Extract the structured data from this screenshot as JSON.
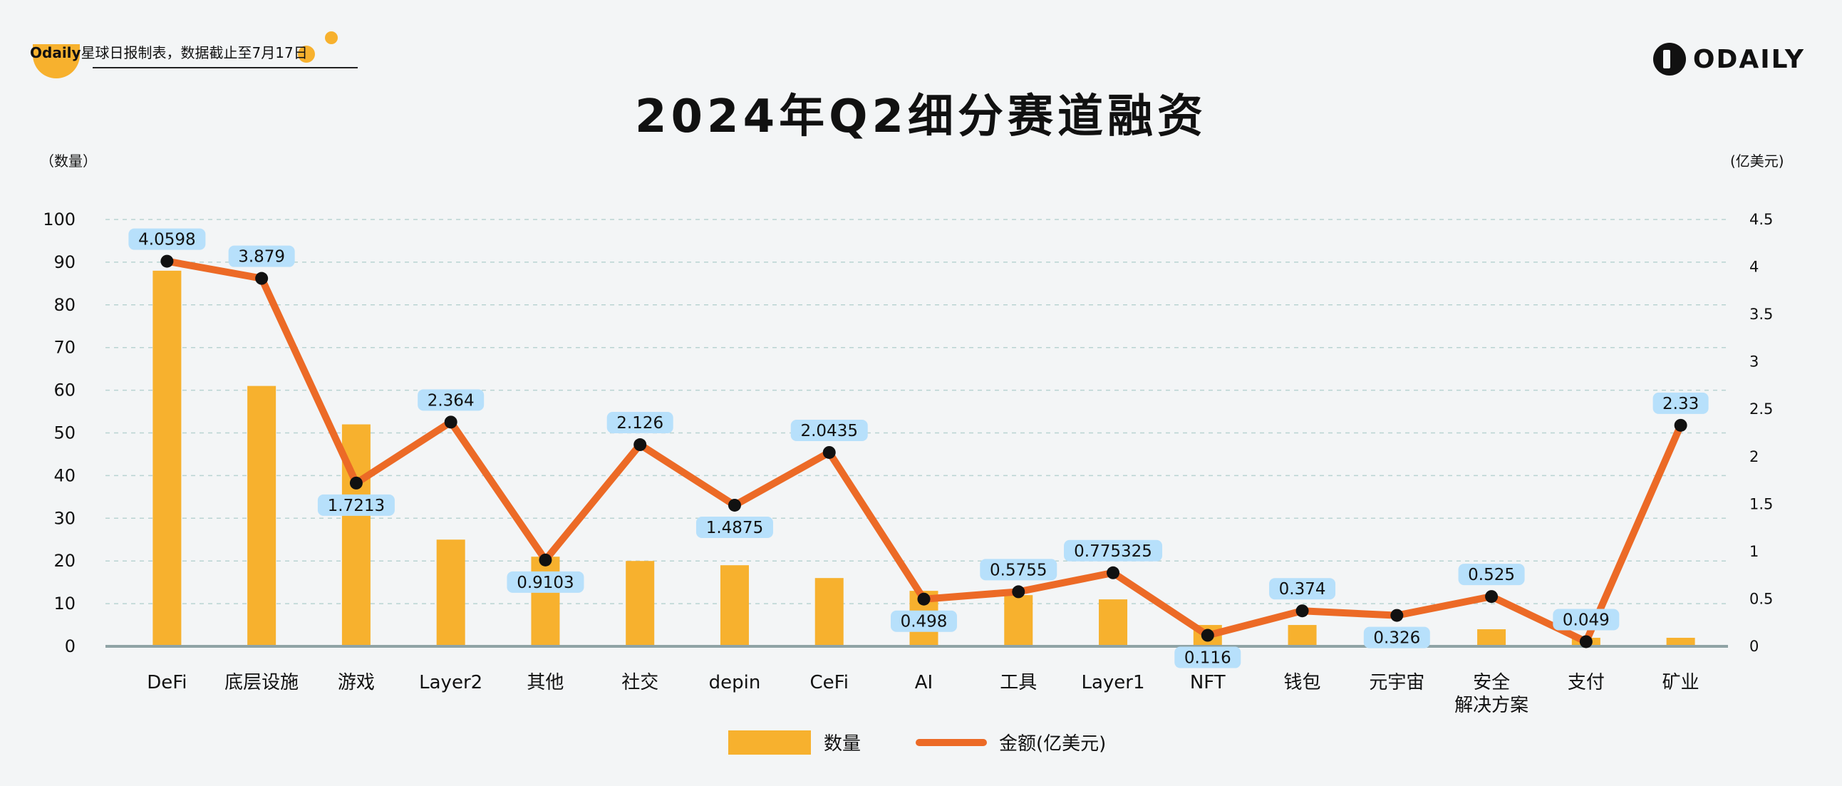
{
  "header": {
    "brand": "Odaily",
    "note": "星球日报制表，数据截止至7月17日"
  },
  "title": "2024年Q2细分赛道融资",
  "logo": {
    "text": "ODAILY",
    "icon": "odaily-logo-icon"
  },
  "colors": {
    "bar": "#f7b12e",
    "line": "#ec6a26",
    "point": "#111111",
    "label_bg": "#b7e0fb",
    "grid": "#b9d4d2"
  },
  "chart_data": {
    "type": "bar+line",
    "categories": [
      "DeFi",
      "底层设施",
      "游戏",
      "Layer2",
      "其他",
      "社交",
      "depin",
      "CeFi",
      "AI",
      "工具",
      "Layer1",
      "NFT",
      "钱包",
      "元宇宙",
      "安全\n解决方案",
      "支付",
      "矿业"
    ],
    "series": [
      {
        "name": "数量",
        "type": "bar",
        "axis": "left",
        "values": [
          88,
          61,
          52,
          25,
          21,
          20,
          19,
          16,
          13,
          12,
          11,
          5,
          5,
          4,
          4,
          2,
          2
        ]
      },
      {
        "name": "金额(亿美元)",
        "type": "line",
        "axis": "right",
        "values": [
          4.0598,
          3.879,
          1.7213,
          2.364,
          0.9103,
          2.126,
          1.4875,
          2.0435,
          0.498,
          0.5755,
          0.775325,
          0.116,
          0.374,
          0.326,
          0.525,
          0.049,
          2.33
        ]
      }
    ],
    "data_labels": [
      "4.0598",
      "3.879",
      "1.7213",
      "2.364",
      "0.9103",
      "2.126",
      "1.4875",
      "2.0435",
      "0.498",
      "0.5755",
      "0.775325",
      "0.116",
      "0.374",
      "0.326",
      "0.525",
      "0.049",
      "2.33"
    ],
    "y_left": {
      "label": "（数量）",
      "ticks": [
        0,
        10,
        20,
        30,
        40,
        50,
        60,
        70,
        80,
        90,
        100
      ],
      "ylim": [
        0,
        100
      ]
    },
    "y_right": {
      "label": "(亿美元)",
      "ticks": [
        "0",
        "0.5",
        "1",
        "1.5",
        "2",
        "2.5",
        "3",
        "3.5",
        "4",
        "4.5"
      ],
      "ylim": [
        0,
        4.5
      ]
    },
    "legend": {
      "placement": "bottom-center",
      "items": [
        "数量",
        "金额(亿美元)"
      ]
    },
    "grid": true
  }
}
